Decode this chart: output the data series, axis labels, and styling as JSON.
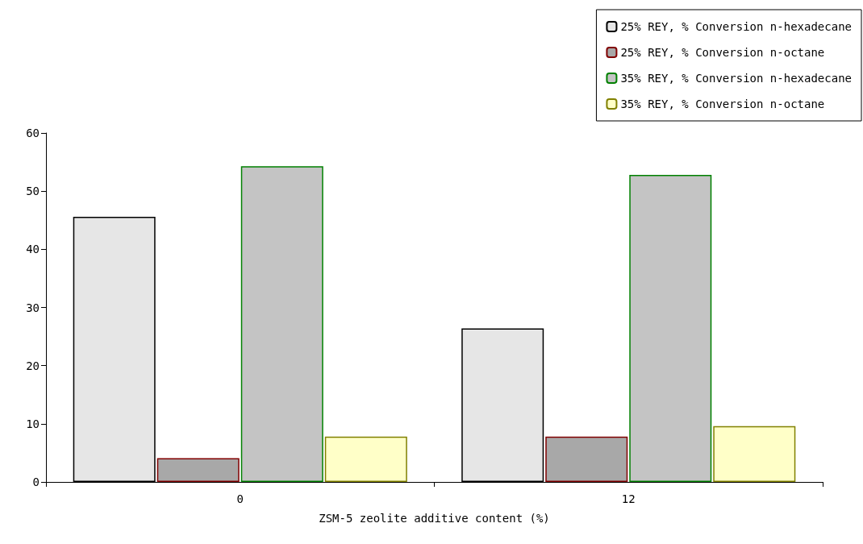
{
  "chart_data": {
    "type": "bar",
    "xlabel": "ZSM-5 zeolite additive content (%)",
    "categories": [
      "0",
      "12"
    ],
    "series": [
      {
        "name": "25% REY, % Conversion n-hexadecane",
        "color": "#e6e6e6",
        "values": [
          45.6,
          26.4
        ]
      },
      {
        "name": "25% REY, % Conversion n-octane",
        "color": "#a8a8a8",
        "values": [
          4.1,
          7.8
        ]
      },
      {
        "name": "35% REY, % Conversion n-hexadecane",
        "color": "#c4c4c4",
        "values": [
          54.3,
          52.8
        ]
      },
      {
        "name": "35% REY, % Conversion n-octane",
        "color": "#ffffc8",
        "values": [
          7.8,
          9.6
        ]
      }
    ],
    "ylim": [
      0,
      60
    ],
    "yticks": [
      0,
      10,
      20,
      30,
      40,
      50,
      60
    ],
    "grid": false,
    "legend": "top right"
  }
}
